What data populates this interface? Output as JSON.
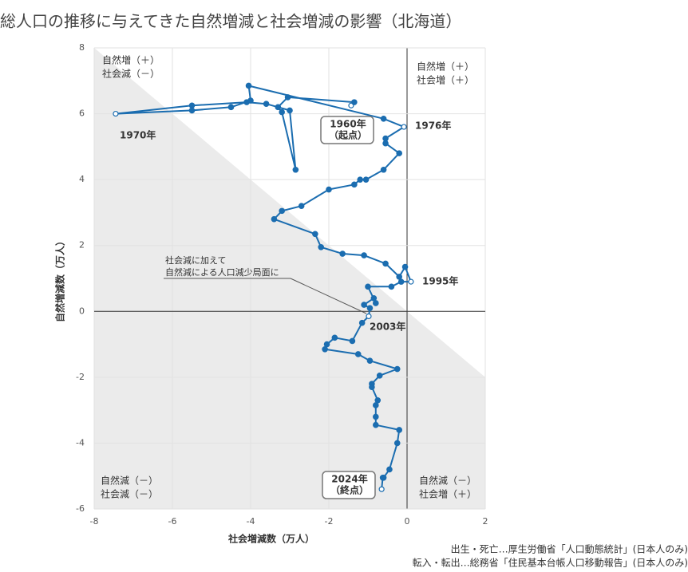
{
  "chart_data": {
    "type": "line",
    "title": "総人口の推移に与えてきた自然増減と社会増減の影響（北海道）",
    "xlabel": "社会増減数（万人）",
    "ylabel": "自然増減数（万人）",
    "xlim": [
      -8,
      2
    ],
    "xticks": [
      -8,
      -6,
      -4,
      -2,
      0,
      2
    ],
    "ylim": [
      -6,
      8
    ],
    "yticks": [
      -6,
      -4,
      -2,
      0,
      2,
      4,
      6,
      8
    ],
    "grid": true,
    "series": [
      {
        "color": "#1b6db0",
        "x": [
          -1.43,
          -1.35,
          -3.05,
          -3.3,
          -3.2,
          -2.85,
          -3.0,
          -3.6,
          -4.1,
          -5.5,
          -7.45,
          -5.5,
          -4.5,
          -4.0,
          -4.05,
          -0.6,
          -0.08,
          -0.55,
          -0.55,
          -0.2,
          -0.6,
          -1.05,
          -1.2,
          -1.35,
          -2.0,
          -2.7,
          -3.2,
          -3.4,
          -2.35,
          -2.2,
          -1.65,
          -1.1,
          -0.55,
          -0.2,
          -0.05,
          0.1,
          -0.15,
          -0.4,
          -1.0,
          -0.8,
          -0.85,
          -1.1,
          -0.95,
          -0.98,
          -1.15,
          -1.4,
          -1.85,
          -2.05,
          -2.1,
          -1.25,
          -0.95,
          -0.25,
          -0.7,
          -0.9,
          -0.9,
          -0.75,
          -0.8,
          -0.8,
          -0.8,
          -0.2,
          -0.25,
          -0.45,
          -0.6,
          -0.62,
          -0.65
        ],
        "values": [
          6.25,
          6.35,
          6.5,
          6.2,
          6.05,
          4.3,
          6.1,
          6.3,
          6.35,
          6.25,
          6.0,
          6.1,
          6.2,
          6.4,
          6.85,
          5.85,
          5.6,
          5.25,
          5.1,
          4.8,
          4.3,
          4.0,
          4.0,
          3.85,
          3.7,
          3.2,
          3.05,
          2.8,
          2.35,
          1.95,
          1.75,
          1.7,
          1.45,
          1.05,
          1.35,
          0.9,
          0.9,
          0.75,
          0.75,
          0.25,
          0.4,
          0.2,
          0.1,
          -0.15,
          -0.35,
          -0.9,
          -0.8,
          -1.0,
          -1.15,
          -1.3,
          -1.5,
          -1.75,
          -1.95,
          -2.2,
          -2.3,
          -2.7,
          -2.85,
          -3.2,
          -3.45,
          -3.6,
          -4.0,
          -4.8,
          -5.05,
          -5.05,
          -5.4
        ]
      }
    ],
    "year_labels": [
      "1970年",
      "1976年",
      "1995年",
      "2003年"
    ],
    "boxed_labels": [
      [
        "1960年",
        "（起点）"
      ],
      [
        "2024年",
        "（終点）"
      ]
    ],
    "callout": [
      "社会減に加えて",
      "自然減による人口減少局面に"
    ],
    "quadrant_labels": [
      [
        "自然増（＋）",
        "社会減（－）"
      ],
      [
        "自然増（＋）",
        "社会増（＋）"
      ],
      [
        "自然減（－）",
        "社会減（－）"
      ],
      [
        "自然減（－）",
        "社会増（＋）"
      ]
    ],
    "source": [
      "出生・死亡…厚生労働省「人口動態統計」(日本人のみ)",
      "転入・転出…総務省「住民基本台帳人口移動報告」(日本人のみ)"
    ]
  }
}
